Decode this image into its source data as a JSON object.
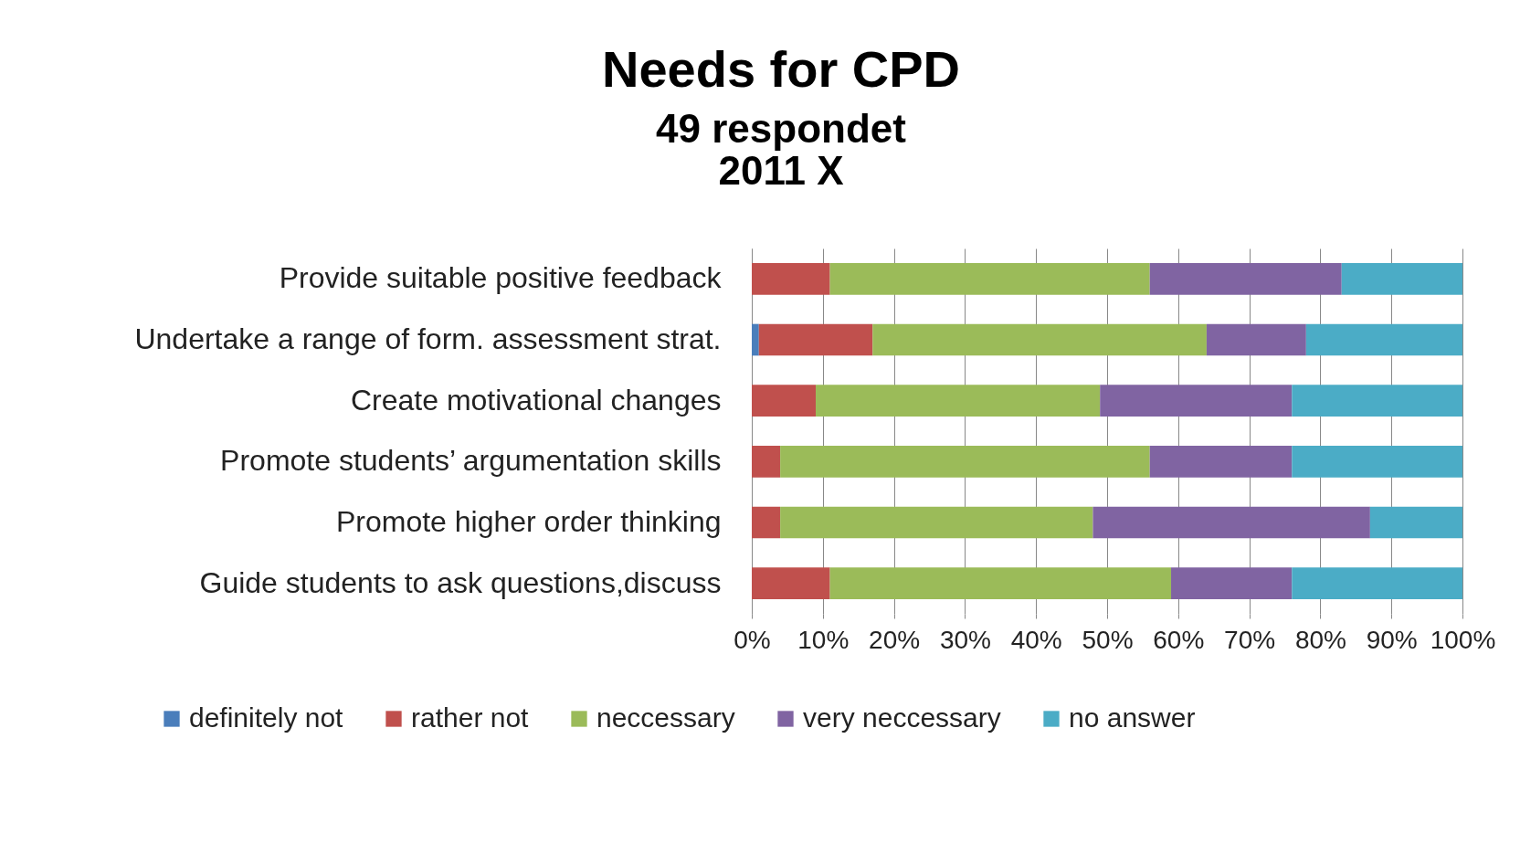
{
  "chart_data": {
    "type": "bar",
    "orientation": "horizontal",
    "stacked": true,
    "title": "Needs for CPD",
    "subtitle": "49 respondet\n2011 X",
    "categories": [
      "Provide suitable positive feedback",
      "Undertake a range of form. assessment strat.",
      "Create motivational changes",
      "Promote students’ argumentation skills",
      "Promote higher order thinking",
      "Guide students to ask questions,discuss"
    ],
    "series": [
      {
        "name": "definitely not",
        "color": "#4a7ebb",
        "values": [
          0,
          1,
          0,
          0,
          0,
          0
        ]
      },
      {
        "name": "rather not",
        "color": "#c0504d",
        "values": [
          11,
          16,
          9,
          4,
          4,
          11
        ]
      },
      {
        "name": "neccessary",
        "color": "#9bbb59",
        "values": [
          45,
          47,
          40,
          52,
          44,
          48
        ]
      },
      {
        "name": "very neccessary",
        "color": "#8064a2",
        "values": [
          27,
          14,
          27,
          20,
          39,
          17
        ]
      },
      {
        "name": "no answer",
        "color": "#4bacc6",
        "values": [
          17,
          22,
          24,
          24,
          13,
          24
        ]
      }
    ],
    "xlim": [
      0,
      100
    ],
    "xticks": [
      {
        "value": 0,
        "label": "0%"
      },
      {
        "value": 10,
        "label": "10%"
      },
      {
        "value": 20,
        "label": "20%"
      },
      {
        "value": 30,
        "label": "30%"
      },
      {
        "value": 40,
        "label": "40%"
      },
      {
        "value": 50,
        "label": "50%"
      },
      {
        "value": 60,
        "label": "60%"
      },
      {
        "value": 70,
        "label": "70%"
      },
      {
        "value": 80,
        "label": "80%"
      },
      {
        "value": 90,
        "label": "90%"
      },
      {
        "value": 100,
        "label": "100%"
      }
    ],
    "grid": "x",
    "legend": "bottom"
  }
}
